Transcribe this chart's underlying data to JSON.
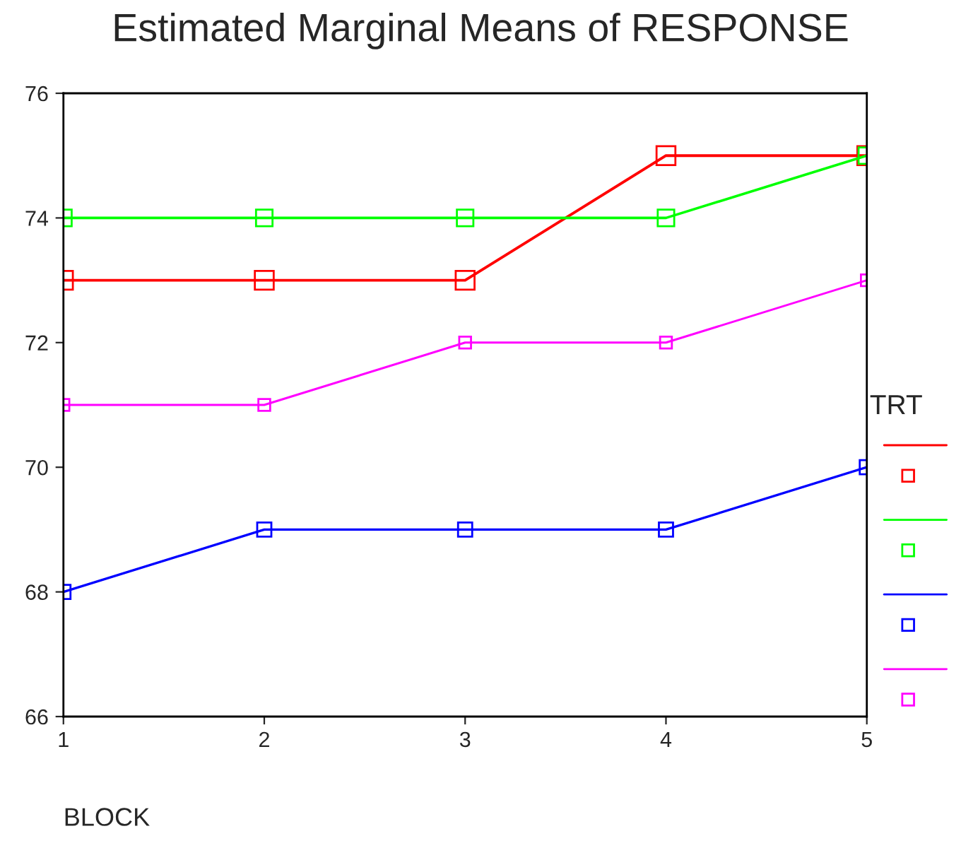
{
  "chart_data": {
    "type": "line",
    "title": "Estimated Marginal Means of RESPONSE",
    "xlabel": "BLOCK",
    "legend_title": "TRT",
    "x": [
      1,
      2,
      3,
      4,
      5
    ],
    "xlim": [
      1,
      5
    ],
    "xticks": [
      1,
      2,
      3,
      4,
      5
    ],
    "ylim": [
      66,
      76
    ],
    "yticks": [
      66,
      68,
      70,
      72,
      74,
      76
    ],
    "series": [
      {
        "color": "#ff0000",
        "values": [
          73,
          73,
          73,
          75,
          75
        ]
      },
      {
        "color": "#00ff00",
        "values": [
          74,
          74,
          74,
          74,
          75
        ]
      },
      {
        "color": "#0000ff",
        "values": [
          68,
          69,
          69,
          69,
          70
        ]
      },
      {
        "color": "#ff00ff",
        "values": [
          71,
          71,
          72,
          72,
          73
        ]
      }
    ],
    "marker": "square",
    "line_style": "solid",
    "grid": false
  }
}
